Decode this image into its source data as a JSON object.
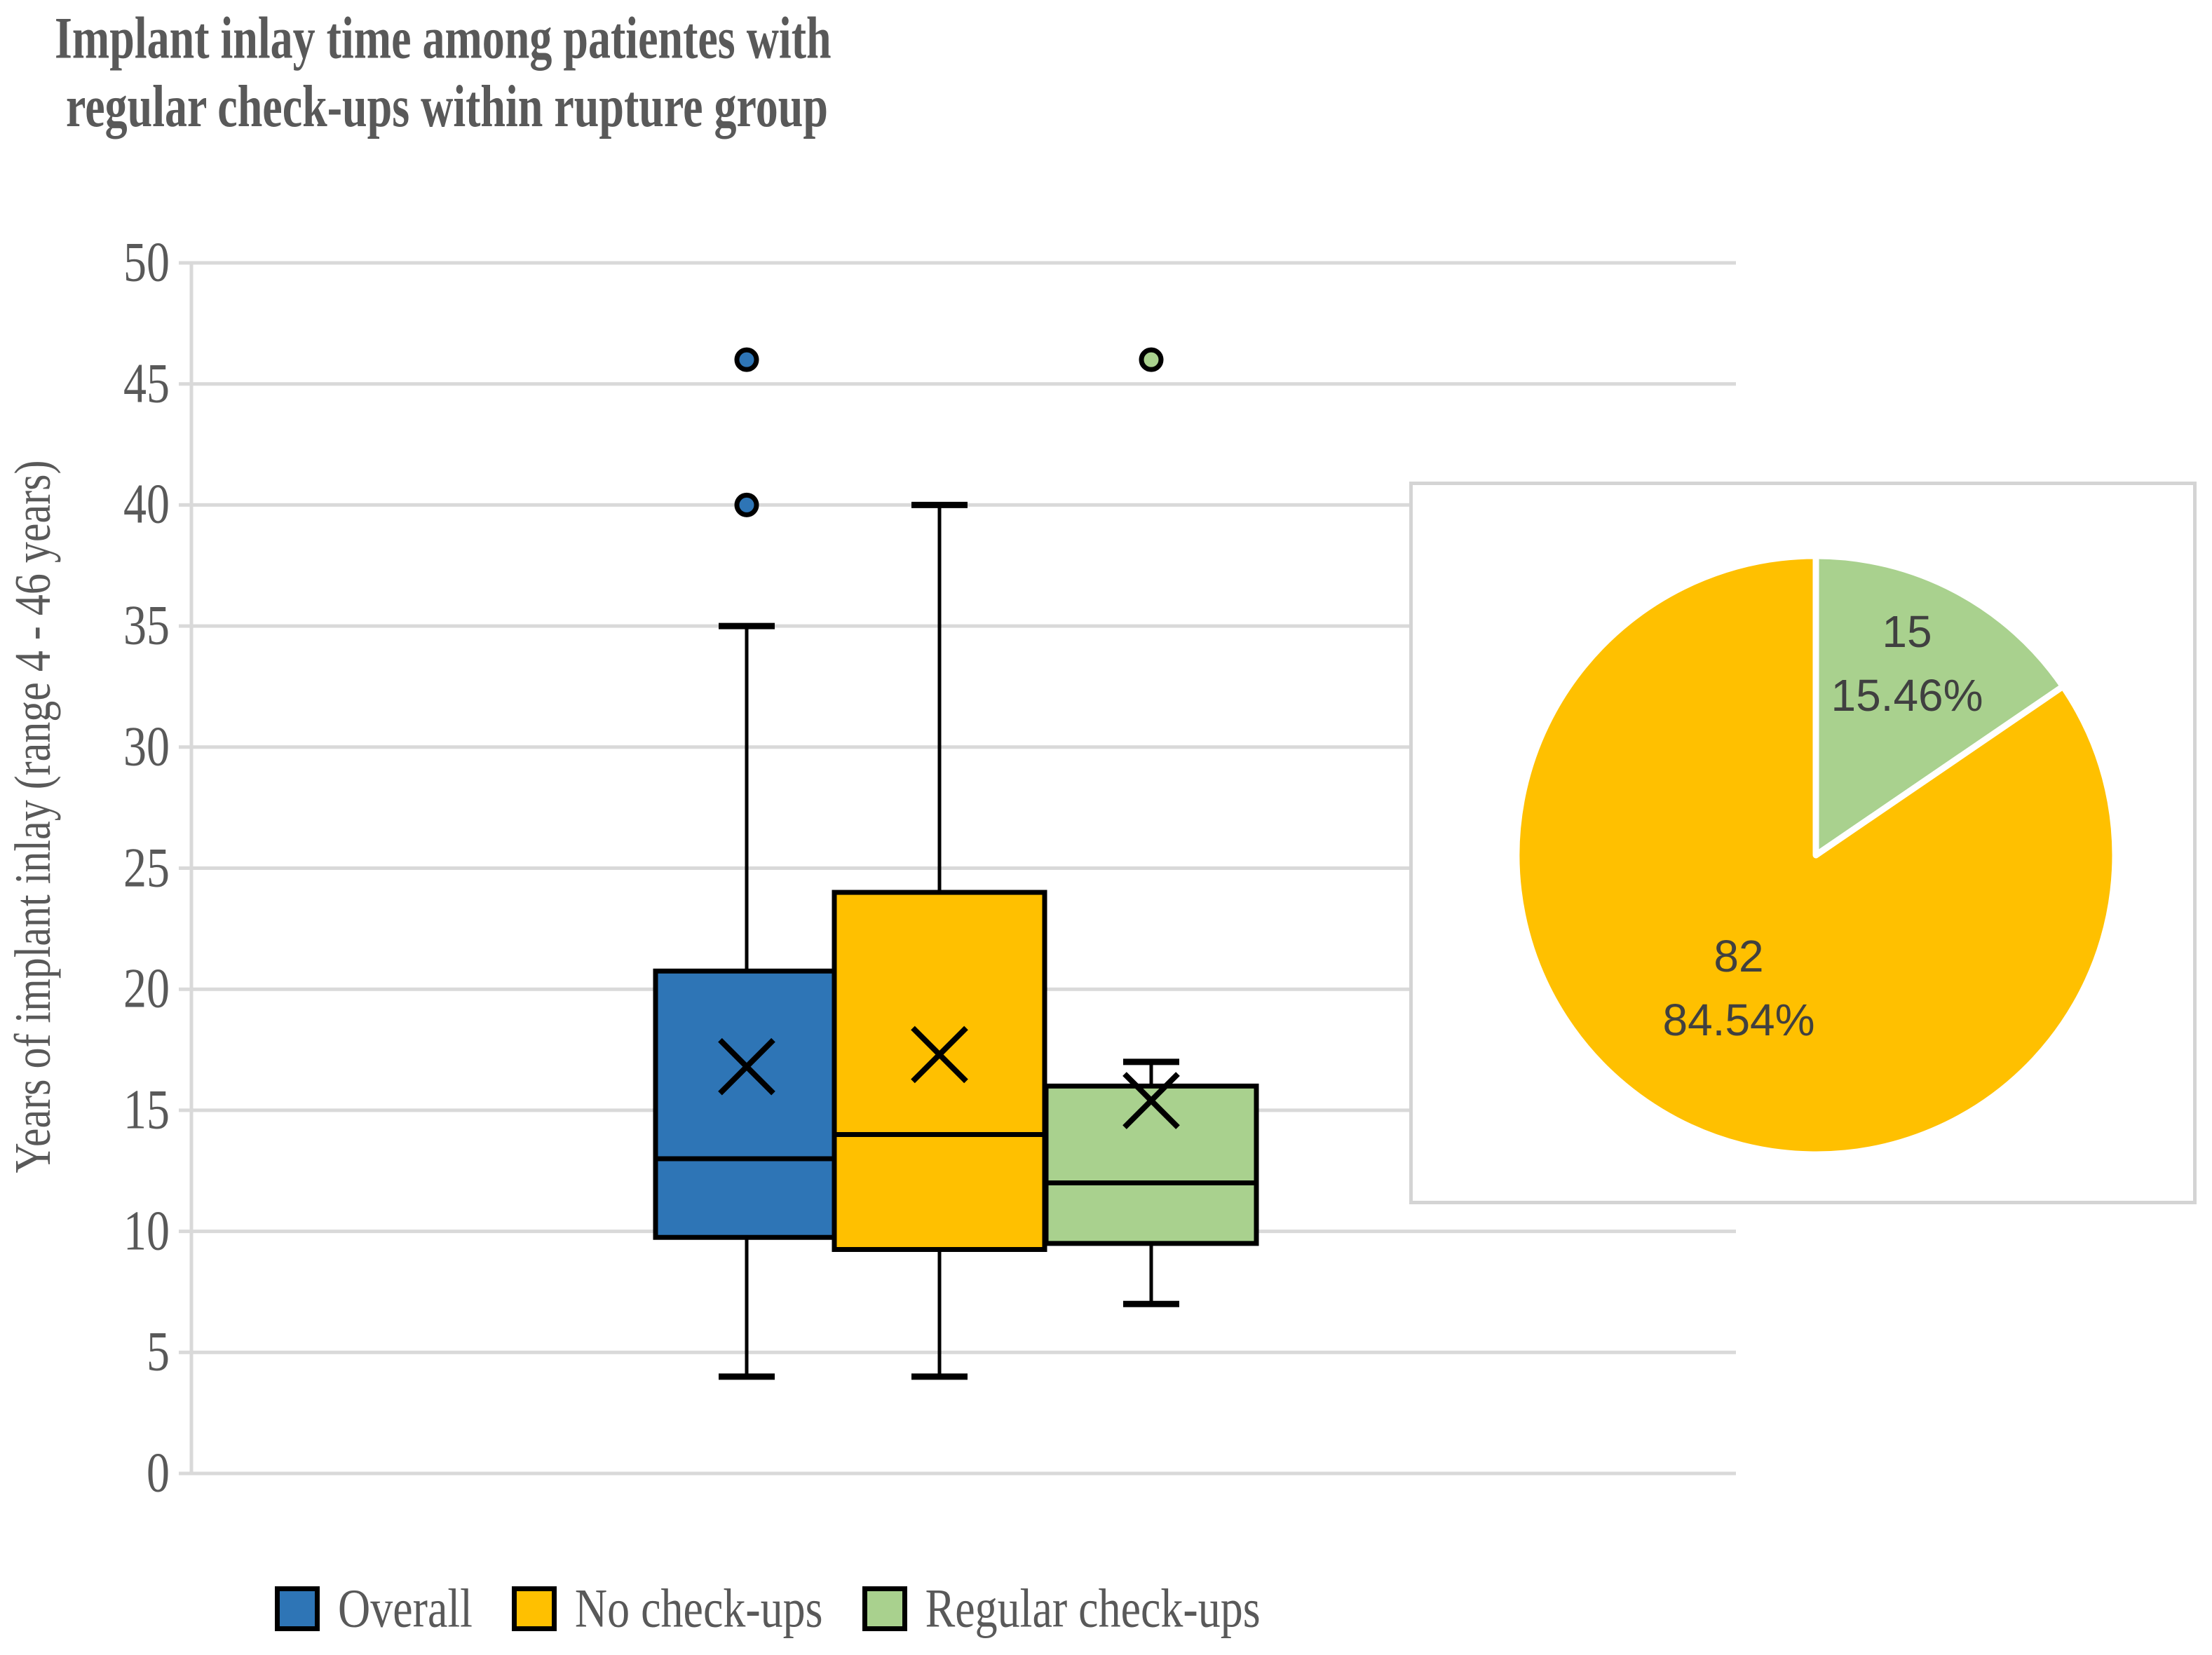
{
  "title": {
    "line1": "Implant inlay time among patientes with",
    "line2": "regular check-ups within rupture group"
  },
  "chart_data": {
    "type": "box",
    "title": "Implant inlay time among patientes with regular check-ups within rupture group",
    "y_axis": {
      "label": "Years of implant inlay (range 4 - 46 years)",
      "min": 0,
      "max": 50,
      "tick_step": 5,
      "ticks": [
        0,
        5,
        10,
        15,
        20,
        25,
        30,
        35,
        40,
        45,
        50
      ]
    },
    "grid": "horizontal",
    "series": [
      {
        "name": "Overall",
        "color": "#2E75B6",
        "whisker_low": 4,
        "q1": 9.75,
        "median": 13,
        "q3": 20.75,
        "whisker_high": 35,
        "mean": 16.8,
        "outliers": [
          40,
          46
        ]
      },
      {
        "name": "No check-ups",
        "color": "#FFC000",
        "whisker_low": 4,
        "q1": 9.25,
        "median": 14,
        "q3": 24,
        "whisker_high": 40,
        "mean": 17.3,
        "outliers": []
      },
      {
        "name": "Regular check-ups",
        "color": "#A9D18E",
        "whisker_low": 7,
        "q1": 9.5,
        "median": 12,
        "q3": 16,
        "whisker_high": 17,
        "mean": 15.4,
        "outliers": [
          46
        ]
      }
    ],
    "pie_inset": {
      "type": "pie",
      "start_angle_deg": 0,
      "slices": [
        {
          "label": "Regular check-ups",
          "value": 15,
          "pct": "15.46%",
          "color": "#A9D18E"
        },
        {
          "label": "No check-ups",
          "value": 82,
          "pct": "84.54%",
          "color": "#FFC000"
        }
      ]
    },
    "legend": {
      "position": "bottom",
      "items": [
        {
          "label": "Overall",
          "color": "#2E75B6"
        },
        {
          "label": "No check-ups",
          "color": "#FFC000"
        },
        {
          "label": "Regular check-ups",
          "color": "#A9D18E"
        }
      ]
    },
    "colors": {
      "gridline": "#D9D9D9",
      "text": "#595959",
      "pie_label_text": "#404040",
      "box_border": "#000000"
    }
  }
}
